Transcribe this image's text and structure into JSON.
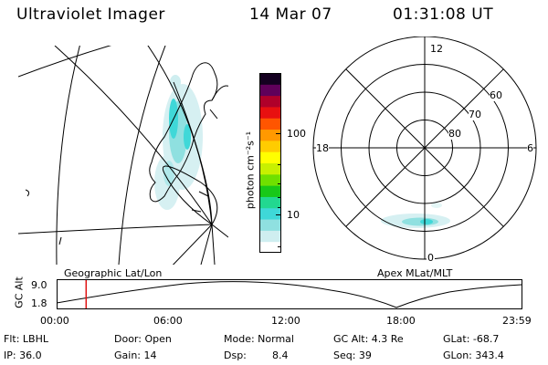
{
  "header": {
    "instrument": "Ultraviolet Imager",
    "date": "14 Mar 07",
    "time": "01:31:08 UT"
  },
  "colorbar": {
    "unit_label": "photon cm⁻²s⁻¹",
    "ticks": [
      {
        "label": "100",
        "value": 100
      },
      {
        "label": "10",
        "value": 10
      }
    ],
    "colors": [
      "#ffffff",
      "#cfeef0",
      "#8fe0e0",
      "#3fd8d8",
      "#22d890",
      "#18c818",
      "#70e000",
      "#c8f000",
      "#ffff00",
      "#ffcc00",
      "#ff9900",
      "#ff5500",
      "#e81010",
      "#b0002a",
      "#60005a",
      "#140020"
    ]
  },
  "polar": {
    "mlt_labels": {
      "top": "12",
      "left": "18",
      "right": "6",
      "bottom": "0"
    },
    "lat_labels": [
      {
        "label": "60",
        "lat": 60
      },
      {
        "label": "70",
        "lat": 70
      },
      {
        "label": "80",
        "lat": 80
      }
    ]
  },
  "panel_labels": {
    "left": "Geographic Lat/Lon",
    "right": "Apex MLat/MLT"
  },
  "altitude_plot": {
    "axis_label": "GC Alt",
    "y_ticks": [
      "9.0",
      "1.8"
    ],
    "x_ticks": [
      "00:00",
      "06:00",
      "12:00",
      "18:00",
      "23:59"
    ],
    "marker_time_hours": 1.52
  },
  "info": {
    "filter": "Flt: LBHL",
    "ip": "IP: 36.0",
    "door": "Door: Open",
    "gain": "Gain: 14",
    "mode": "Mode: Normal",
    "dsp_label": "Dsp:",
    "dsp_value": "8.4",
    "gc_alt": "GC Alt: 4.3 Re",
    "seq": "Seq: 39",
    "glat": "GLat: -68.7",
    "glon": "GLon: 343.4"
  }
}
